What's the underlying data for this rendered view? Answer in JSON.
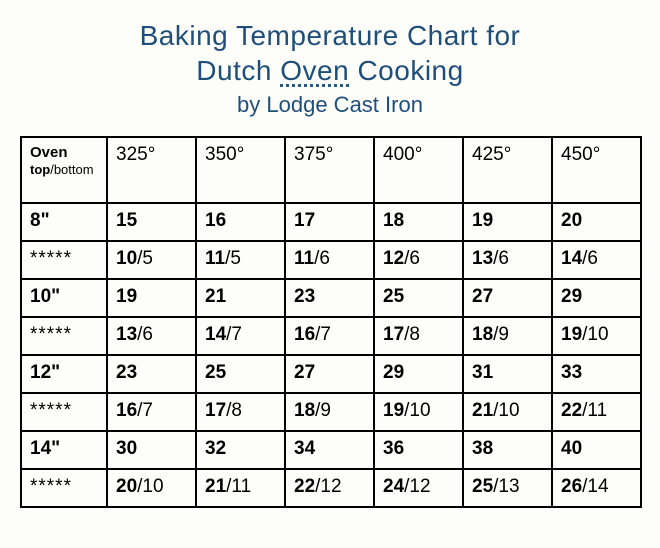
{
  "title": {
    "line1_a": "Baking Temperature Chart",
    "line1_b": "for",
    "line2_a": "Dutch ",
    "line2_u": "Oven",
    "line2_b": " Cooking",
    "byline": "by Lodge Cast Iron"
  },
  "header": {
    "first_top": "Oven",
    "first_bottom_a": "top",
    "first_bottom_b": "/bottom",
    "temps": [
      "325°",
      "350°",
      "375°",
      "400°",
      "425°",
      "450°"
    ]
  },
  "rows": [
    {
      "label": "8\"",
      "type": "size",
      "cells_b": [
        "15",
        "16",
        "17",
        "18",
        "19",
        "20"
      ],
      "cells_n": [
        "",
        "",
        "",
        "",
        "",
        ""
      ]
    },
    {
      "label": "*****",
      "type": "stars",
      "cells_b": [
        "10",
        "11",
        "11",
        "12",
        "13",
        "14"
      ],
      "cells_n": [
        "/5",
        "/5",
        "/6",
        "/6",
        "/6",
        "/6"
      ]
    },
    {
      "label": "10\"",
      "type": "size",
      "cells_b": [
        "19",
        "21",
        "23",
        "25",
        "27",
        "29"
      ],
      "cells_n": [
        "",
        "",
        "",
        "",
        "",
        ""
      ]
    },
    {
      "label": "*****",
      "type": "stars",
      "cells_b": [
        "13",
        "14",
        "16",
        "17",
        "18",
        "19"
      ],
      "cells_n": [
        "/6",
        "/7",
        "/7",
        "/8",
        "/9",
        "/10"
      ]
    },
    {
      "label": "12\"",
      "type": "size",
      "cells_b": [
        "23",
        "25",
        "27",
        "29",
        "31",
        "33"
      ],
      "cells_n": [
        "",
        "",
        "",
        "",
        "",
        ""
      ]
    },
    {
      "label": "*****",
      "type": "stars",
      "cells_b": [
        "16",
        "17",
        "18",
        "19",
        "21",
        "22"
      ],
      "cells_n": [
        "/7",
        "/8",
        "/9",
        "/10",
        "/10",
        "/11"
      ]
    },
    {
      "label": "14\"",
      "type": "size",
      "cells_b": [
        "30",
        "32",
        "34",
        "36",
        "38",
        "40"
      ],
      "cells_n": [
        "",
        "",
        "",
        "",
        "",
        ""
      ]
    },
    {
      "label": "*****",
      "type": "stars",
      "cells_b": [
        "20",
        "21",
        "22",
        "24",
        "25",
        "26"
      ],
      "cells_n": [
        "/10",
        "/11",
        "/12",
        "/12",
        "/13",
        "/14"
      ]
    }
  ],
  "colors": {
    "title": "#1f4e79",
    "border": "#000000",
    "background": "#fdfdf9"
  }
}
